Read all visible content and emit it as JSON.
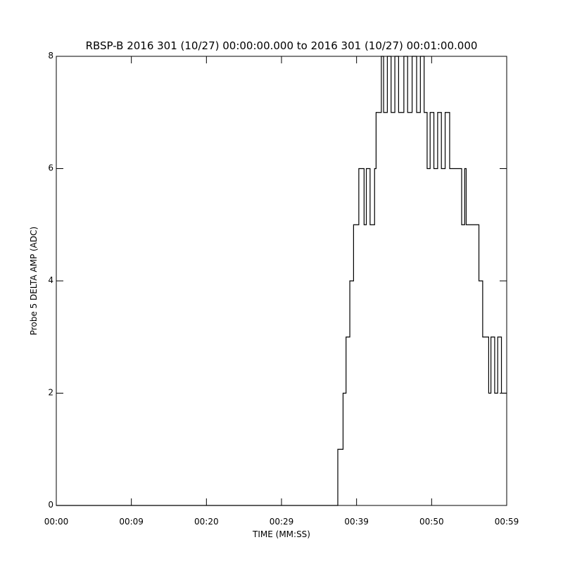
{
  "chart_data": {
    "type": "line",
    "title": "RBSP-B 2016 301 (10/27) 00:00:00.000 to 2016 301 (10/27) 00:01:00.000",
    "x_label": "TIME (MM:SS)",
    "y_label": "Probe 5 DELTA AMP (ADC)",
    "color": "#000000",
    "x": [
      0,
      37.5,
      37.5,
      38.2,
      38.2,
      38.6,
      38.6,
      39.1,
      39.1,
      39.6,
      39.6,
      40.3,
      40.3,
      41.0,
      41.0,
      41.3,
      41.3,
      41.8,
      41.8,
      42.4,
      42.4,
      42.6,
      42.6,
      43.3,
      43.3,
      43.6,
      43.6,
      44.1,
      44.1,
      44.6,
      44.6,
      45.1,
      45.1,
      45.6,
      45.6,
      46.3,
      46.3,
      46.8,
      46.8,
      47.4,
      47.4,
      48.0,
      48.0,
      48.5,
      48.5,
      49.0,
      49.0,
      49.4,
      49.4,
      49.8,
      49.8,
      50.3,
      50.3,
      50.8,
      50.8,
      51.3,
      51.3,
      51.8,
      51.8,
      52.4,
      52.4,
      54.0,
      54.0,
      54.4,
      54.4,
      54.6,
      54.6,
      56.3,
      56.3,
      56.8,
      56.8,
      57.6,
      57.6,
      57.9,
      57.9,
      58.4,
      58.4,
      58.8,
      58.8,
      59.3,
      59.3,
      60
    ],
    "values": [
      0,
      0,
      1,
      1,
      2,
      2,
      3,
      3,
      4,
      4,
      5,
      5,
      6,
      6,
      5,
      5,
      6,
      6,
      5,
      5,
      6,
      6,
      7,
      7,
      8,
      8,
      7,
      7,
      8,
      8,
      7,
      7,
      8,
      8,
      7,
      7,
      8,
      8,
      7,
      7,
      8,
      8,
      7,
      7,
      8,
      8,
      7,
      7,
      6,
      6,
      7,
      7,
      6,
      6,
      7,
      7,
      6,
      6,
      7,
      7,
      6,
      6,
      5,
      5,
      6,
      6,
      5,
      5,
      4,
      4,
      3,
      3,
      2,
      2,
      3,
      3,
      2,
      2,
      3,
      3,
      2,
      2
    ],
    "xlim": [
      0,
      60
    ],
    "xticks": [
      {
        "value": 0,
        "label": "00:00"
      },
      {
        "value": 10,
        "label": "00:09"
      },
      {
        "value": 20,
        "label": "00:20"
      },
      {
        "value": 30,
        "label": "00:29"
      },
      {
        "value": 40,
        "label": "00:39"
      },
      {
        "value": 50,
        "label": "00:50"
      },
      {
        "value": 60,
        "label": "00:59"
      }
    ],
    "ylim": [
      0,
      8
    ],
    "yticks": [
      0,
      2,
      4,
      6,
      8
    ]
  }
}
